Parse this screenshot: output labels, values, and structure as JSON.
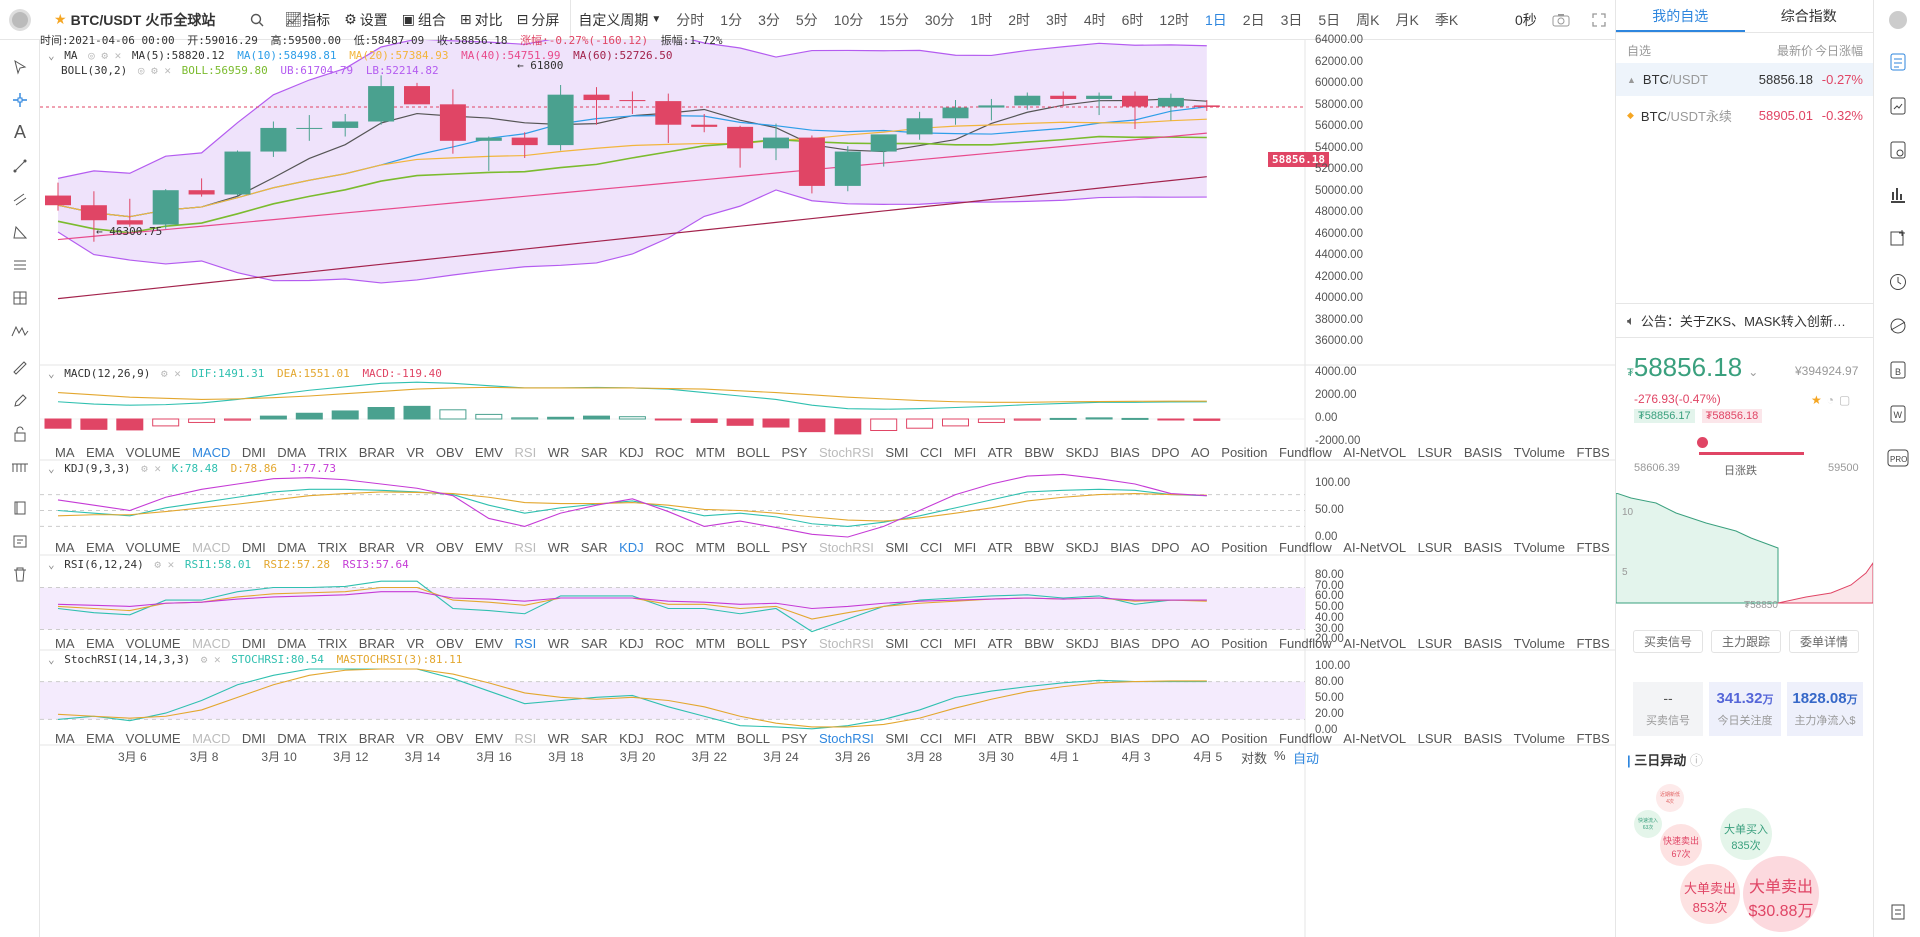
{
  "topbar": {
    "symbol": "BTC/USDT",
    "exchange": "火币全球站",
    "tools": [
      "指标",
      "设置",
      "组合",
      "对比",
      "分屏"
    ],
    "period_label": "自定义周期",
    "periods": [
      "分时",
      "1分",
      "3分",
      "5分",
      "10分",
      "15分",
      "30分",
      "1时",
      "2时",
      "3时",
      "4时",
      "6时",
      "12时",
      "1日",
      "2日",
      "3日",
      "5日",
      "周K",
      "月K",
      "季K"
    ],
    "active_period": "1日",
    "seconds": "0秒"
  },
  "ohlc": {
    "time": "时间:2021-04-06 00:00",
    "open": "开:59016.29",
    "high": "高:59500.00",
    "low": "低:58487.09",
    "close": "收:58856.18",
    "change": "涨幅:-0.27%(-160.12)",
    "amplitude": "振幅:1.72%"
  },
  "ma": {
    "name": "MA",
    "ma5": "MA(5):58820.12",
    "ma10": "MA(10):58498.81",
    "ma20": "MA(20):57384.93",
    "ma40": "MA(40):54751.99",
    "ma60": "MA(60):52726.50"
  },
  "boll": {
    "name": "BOLL(30,2)",
    "boll": "BOLL:56959.80",
    "ub": "UB:61704.79",
    "lb": "LB:52214.82"
  },
  "annot": {
    "high": "← 61800",
    "low": "← 46300.75",
    "last_price": "58856.18"
  },
  "price_axis": [
    "64000.00",
    "62000.00",
    "60000.00",
    "58000.00",
    "56000.00",
    "54000.00",
    "52000.00",
    "50000.00",
    "48000.00",
    "46000.00",
    "44000.00",
    "42000.00",
    "40000.00",
    "38000.00",
    "36000.00"
  ],
  "macd": {
    "name": "MACD(12,26,9)",
    "dif": "DIF:1491.31",
    "dea": "DEA:1551.01",
    "macd": "MACD:-119.40",
    "axis": [
      "4000.00",
      "2000.00",
      "0.00",
      "-2000.00"
    ]
  },
  "kdj": {
    "name": "KDJ(9,3,3)",
    "k": "K:78.48",
    "d": "D:78.86",
    "j": "J:77.73",
    "axis": [
      "100.00",
      "50.00",
      "0.00"
    ]
  },
  "rsi": {
    "name": "RSI(6,12,24)",
    "r1": "RSI1:58.01",
    "r2": "RSI2:57.28",
    "r3": "RSI3:57.64",
    "axis": [
      "80.00",
      "70.00",
      "60.00",
      "50.00",
      "40.00",
      "30.00",
      "20.00"
    ]
  },
  "stochrsi": {
    "name": "StochRSI(14,14,3,3)",
    "k": "STOCHRSI:80.54",
    "d": "MASTOCHRSI(3):81.11",
    "axis": [
      "100.00",
      "80.00",
      "50.00",
      "20.00",
      "0.00"
    ]
  },
  "indicator_tabs": [
    "MA",
    "EMA",
    "VOLUME",
    "MACD",
    "DMI",
    "DMA",
    "TRIX",
    "BRAR",
    "VR",
    "OBV",
    "EMV",
    "RSI",
    "WR",
    "SAR",
    "KDJ",
    "ROC",
    "MTM",
    "BOLL",
    "PSY",
    "StochRSI",
    "SMI",
    "CCI",
    "MFI",
    "ATR",
    "BBW",
    "SKDJ",
    "BIAS",
    "DPO",
    "AO",
    "Position",
    "Fundflow",
    "AI-NetVOL",
    "LSUR",
    "BASIS",
    "TVolume",
    "FTBS",
    "TTSI",
    "TTMU"
  ],
  "x_axis": [
    "3月 6",
    "3月 8",
    "3月 10",
    "3月 12",
    "3月 14",
    "3月 16",
    "3月 18",
    "3月 20",
    "3月 22",
    "3月 24",
    "3月 26",
    "3月 28",
    "3月 30",
    "4月 1",
    "4月 3",
    "4月 5"
  ],
  "x_controls": {
    "log": "对数",
    "percent": "%",
    "auto": "自动"
  },
  "watch": {
    "tabs": [
      "我的自选",
      "综合指数"
    ],
    "header": [
      "自选",
      "最新价",
      "今日涨幅"
    ],
    "rows": [
      {
        "sym": "BTC",
        "quote": "/USDT",
        "price": "58856.18",
        "chg": "-0.27%"
      },
      {
        "sym": "BTC",
        "quote": "/USDT永续",
        "price": "58905.01",
        "chg": "-0.32%"
      }
    ]
  },
  "notice": "公告：关于ZKS、MASK转入创新…",
  "detail": {
    "price": "58856.18",
    "cny": "¥394924.97",
    "change": "-276.93(-0.47%)",
    "bid": "₮58856.17",
    "ask": "₮58856.18",
    "range_low": "58606.39",
    "range_high": "59500",
    "range_label": "日涨跌",
    "depth_mark": "₮58850",
    "depth_ticks": [
      "10",
      "5"
    ]
  },
  "buttons": [
    "买卖信号",
    "主力跟踪",
    "委单详情"
  ],
  "stats": [
    {
      "value": "--",
      "label": "买卖信号"
    },
    {
      "value": "341.32",
      "unit": "万",
      "label": "今日关注度"
    },
    {
      "value": "1828.08",
      "unit": "万",
      "label": "主力净流入$"
    }
  ],
  "anomaly": {
    "title": "三日异动",
    "bubbles": [
      {
        "t": "近期新低",
        "v": "4次"
      },
      {
        "t": "快速流入",
        "v": "63次"
      },
      {
        "t": "快速卖出",
        "v": "67次"
      },
      {
        "t": "大单买入",
        "v": "835次"
      },
      {
        "t": "大单卖出",
        "v": "853次"
      },
      {
        "t": "大单卖出",
        "v": "$30.88万"
      }
    ]
  },
  "colors": {
    "up": "#4aa18f",
    "down": "#e04565",
    "accent": "#2e86de",
    "boll_fill": "#efe3fb"
  },
  "chart_data": {
    "type": "candlestick",
    "dates": [
      "03-05",
      "03-06",
      "03-07",
      "03-08",
      "03-09",
      "03-10",
      "03-11",
      "03-12",
      "03-13",
      "03-14",
      "03-15",
      "03-16",
      "03-17",
      "03-18",
      "03-19",
      "03-20",
      "03-21",
      "03-22",
      "03-23",
      "03-24",
      "03-25",
      "03-26",
      "03-27",
      "03-28",
      "03-29",
      "03-30",
      "03-31",
      "04-01",
      "04-02",
      "04-03",
      "04-04",
      "04-05",
      "04-06"
    ],
    "ohlc": [
      [
        50600,
        51800,
        49200,
        49700
      ],
      [
        49700,
        51000,
        46300,
        48300
      ],
      [
        48300,
        50300,
        47700,
        47900
      ],
      [
        47900,
        51200,
        47500,
        51100
      ],
      [
        51100,
        52200,
        50500,
        50700
      ],
      [
        50700,
        54800,
        50600,
        54700
      ],
      [
        54700,
        57500,
        54200,
        56900
      ],
      [
        56900,
        58100,
        55700,
        56900
      ],
      [
        56900,
        58200,
        56100,
        57500
      ],
      [
        57500,
        61800,
        57200,
        60800
      ],
      [
        60800,
        61100,
        59100,
        59100
      ],
      [
        59100,
        60500,
        54500,
        55700
      ],
      [
        55700,
        56100,
        52900,
        56000
      ],
      [
        56000,
        56500,
        54100,
        55300
      ],
      [
        55300,
        60900,
        54800,
        60000
      ],
      [
        60000,
        60700,
        57200,
        59500
      ],
      [
        59500,
        60300,
        58200,
        59400
      ],
      [
        59400,
        60100,
        55500,
        57200
      ],
      [
        57200,
        58200,
        56500,
        57000
      ],
      [
        57000,
        57100,
        53200,
        55000
      ],
      [
        55000,
        57300,
        53900,
        56000
      ],
      [
        56000,
        56200,
        50800,
        51500
      ],
      [
        51500,
        55200,
        51000,
        54700
      ],
      [
        54700,
        56200,
        53300,
        56300
      ],
      [
        56300,
        58400,
        55800,
        57800
      ],
      [
        57800,
        59500,
        57200,
        58800
      ],
      [
        58800,
        59600,
        57600,
        59000
      ],
      [
        59000,
        60200,
        58600,
        59900
      ],
      [
        59900,
        60300,
        58900,
        59600
      ],
      [
        59600,
        60200,
        58100,
        59900
      ],
      [
        59900,
        60300,
        56800,
        58900
      ],
      [
        58900,
        60100,
        57600,
        59700
      ],
      [
        59000,
        59500,
        58487,
        58856
      ]
    ],
    "ylim": [
      35000,
      65000
    ]
  }
}
